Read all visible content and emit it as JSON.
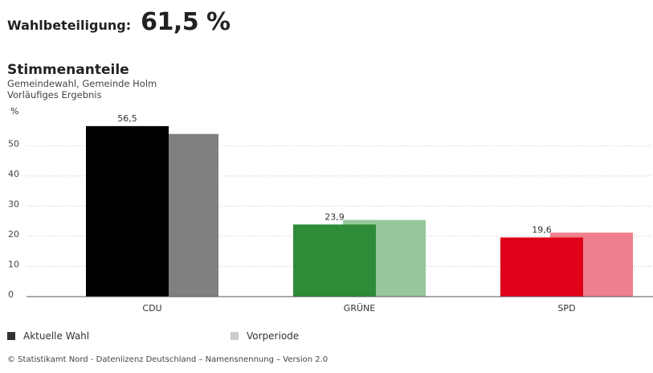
{
  "header": {
    "turnout_label": "Wahlbeteiligung:",
    "turnout_value": "61,5 %"
  },
  "chart_data": {
    "type": "bar",
    "title": "Stimmenanteile",
    "subtitle_lines": [
      "Gemeindewahl, Gemeinde Holm",
      "Vorläufiges Ergebnis"
    ],
    "ylabel": "%",
    "ylim": [
      0,
      57
    ],
    "yticks": [
      0,
      10,
      20,
      30,
      40,
      50
    ],
    "grid": true,
    "categories": [
      "CDU",
      "GRÜNE",
      "SPD"
    ],
    "series": [
      {
        "name": "Aktuelle Wahl",
        "values": [
          56.5,
          23.9,
          19.6
        ],
        "value_labels": [
          "56,5",
          "23,9",
          "19,6"
        ],
        "colors": [
          "#000000",
          "#2e8b38",
          "#e0001a"
        ]
      },
      {
        "name": "Vorperiode",
        "values": [
          53.9,
          25.4,
          21.2
        ],
        "colors": [
          "#808080",
          "#96c79a",
          "#ef7f8c"
        ]
      }
    ],
    "legend": [
      {
        "label": "Aktuelle Wahl",
        "color": "#333333"
      },
      {
        "label": "Vorperiode",
        "color": "#cccccc"
      }
    ],
    "legend_position": "bottom-left"
  },
  "footer": {
    "source": "© Statistikamt Nord - Datenlizenz Deutschland – Namensnennung – Version 2.0"
  }
}
